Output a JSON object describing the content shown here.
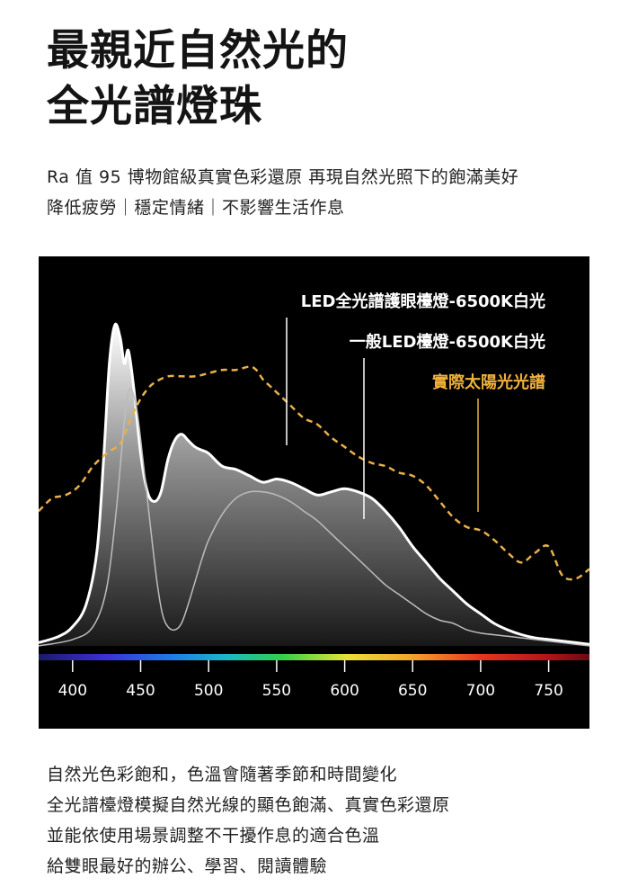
{
  "headline": [
    "最親近自然光的",
    "全光譜燈珠"
  ],
  "subtitle": [
    "Ra 值 95 博物館級真實色彩還原 再現自然光照下的飽滿美好",
    "降低疲勞｜穩定情緒｜不影響生活作息"
  ],
  "body": [
    "自然光色彩飽和，色溫會隨著季節和時間變化",
    "全光譜檯燈模擬自然光線的顯色飽滿、真實色彩還原",
    "並能依使用場景調整不干擾作息的適合色溫",
    "給雙眼最好的辦公、學習、閱讀體驗"
  ],
  "colors": {
    "panel_bg": "#000000",
    "full_spectrum_line": "#ffffff",
    "normal_led_line": "#bdbdbd",
    "sunlight_line": "#e8b04a",
    "sunlight_label": "#f0b23c"
  },
  "chart_data": {
    "type": "line",
    "x_ticks": [
      400,
      450,
      500,
      550,
      600,
      650,
      700,
      750
    ],
    "xlim": [
      375,
      780
    ],
    "ylim": [
      0,
      1.04
    ],
    "grid": false,
    "legend": "top-right, labels with leader lines",
    "series": [
      {
        "name": "LED全光譜護眼檯燈-6500K白光",
        "style": "white solid, gradient filled",
        "x": [
          375,
          390,
          400,
          410,
          418,
          423,
          427,
          431,
          435,
          438,
          441,
          445,
          450,
          455,
          460,
          465,
          470,
          475,
          480,
          485,
          490,
          495,
          500,
          510,
          520,
          530,
          540,
          550,
          560,
          570,
          580,
          590,
          600,
          610,
          620,
          630,
          640,
          650,
          660,
          670,
          680,
          690,
          700,
          710,
          720,
          730,
          740,
          750,
          760,
          770,
          780
        ],
        "values": [
          0.01,
          0.03,
          0.06,
          0.13,
          0.3,
          0.6,
          0.88,
          1.0,
          0.96,
          0.88,
          0.92,
          0.8,
          0.6,
          0.48,
          0.45,
          0.48,
          0.58,
          0.64,
          0.66,
          0.64,
          0.62,
          0.61,
          0.6,
          0.56,
          0.55,
          0.53,
          0.51,
          0.52,
          0.51,
          0.49,
          0.47,
          0.48,
          0.49,
          0.48,
          0.46,
          0.42,
          0.37,
          0.31,
          0.26,
          0.21,
          0.17,
          0.13,
          0.1,
          0.07,
          0.05,
          0.035,
          0.025,
          0.02,
          0.015,
          0.01,
          0.005
        ]
      },
      {
        "name": "一般LED檯燈-6500K白光",
        "style": "gray thin solid",
        "x": [
          375,
          400,
          415,
          425,
          432,
          438,
          442,
          447,
          452,
          457,
          462,
          466,
          470,
          475,
          480,
          485,
          490,
          495,
          500,
          510,
          520,
          530,
          540,
          550,
          560,
          570,
          580,
          590,
          600,
          610,
          620,
          630,
          640,
          650,
          660,
          670,
          680,
          690,
          700,
          720,
          740,
          760,
          780
        ],
        "values": [
          0.0,
          0.02,
          0.06,
          0.18,
          0.42,
          0.7,
          0.8,
          0.74,
          0.57,
          0.38,
          0.2,
          0.1,
          0.06,
          0.05,
          0.07,
          0.13,
          0.2,
          0.27,
          0.33,
          0.41,
          0.46,
          0.48,
          0.48,
          0.47,
          0.45,
          0.42,
          0.39,
          0.35,
          0.31,
          0.27,
          0.23,
          0.19,
          0.16,
          0.13,
          0.1,
          0.08,
          0.07,
          0.05,
          0.04,
          0.03,
          0.02,
          0.01,
          0.0
        ]
      },
      {
        "name": "實際太陽光光譜",
        "style": "orange dashed",
        "x": [
          375,
          385,
          395,
          405,
          415,
          425,
          435,
          440,
          445,
          450,
          455,
          460,
          470,
          480,
          490,
          500,
          510,
          520,
          530,
          535,
          540,
          545,
          550,
          560,
          570,
          580,
          590,
          600,
          610,
          620,
          630,
          640,
          650,
          660,
          670,
          680,
          690,
          700,
          710,
          720,
          730,
          740,
          750,
          760,
          770,
          780
        ],
        "values": [
          0.42,
          0.46,
          0.47,
          0.5,
          0.56,
          0.6,
          0.63,
          0.68,
          0.73,
          0.77,
          0.8,
          0.82,
          0.84,
          0.84,
          0.84,
          0.85,
          0.86,
          0.86,
          0.87,
          0.86,
          0.83,
          0.81,
          0.79,
          0.75,
          0.71,
          0.69,
          0.65,
          0.62,
          0.59,
          0.57,
          0.56,
          0.54,
          0.53,
          0.5,
          0.45,
          0.4,
          0.37,
          0.36,
          0.33,
          0.29,
          0.26,
          0.29,
          0.31,
          0.22,
          0.21,
          0.24
        ]
      }
    ]
  }
}
